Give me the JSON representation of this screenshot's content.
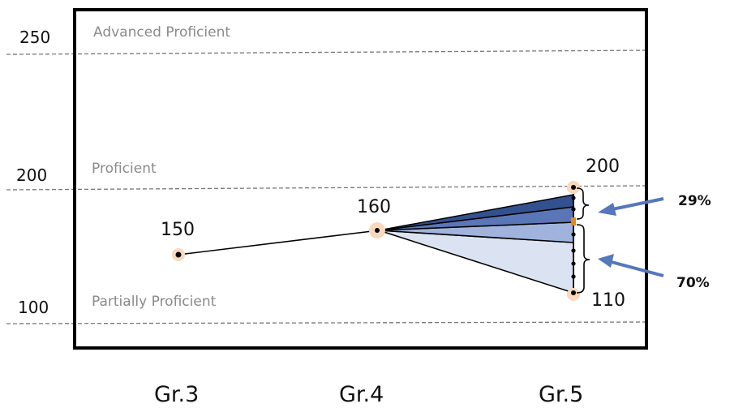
{
  "diagram": {
    "scale_labels": [
      "250",
      "200",
      "100"
    ],
    "level_labels": [
      "Advanced Proficient",
      "Proficient",
      "Partially Proficient"
    ],
    "value_labels": {
      "gr3": "150",
      "gr4": "160",
      "gr5_top": "200",
      "gr5_bottom": "110"
    },
    "grade_labels": [
      "Gr.3",
      "Gr.4",
      "Gr.5"
    ],
    "percent_labels": [
      "29%",
      "70%"
    ],
    "colors": {
      "fan_dark": "#33508f",
      "fan_mid": "#5b76b6",
      "fan_light": "#9fb3dc",
      "fan_lighter": "#c2cfe9",
      "fan_lightest": "#dbe3f2",
      "arrow": "#5577bb",
      "point_halo": "#f8d9bd",
      "cut_marker": "#e8891f",
      "dashed": "#777777"
    }
  }
}
